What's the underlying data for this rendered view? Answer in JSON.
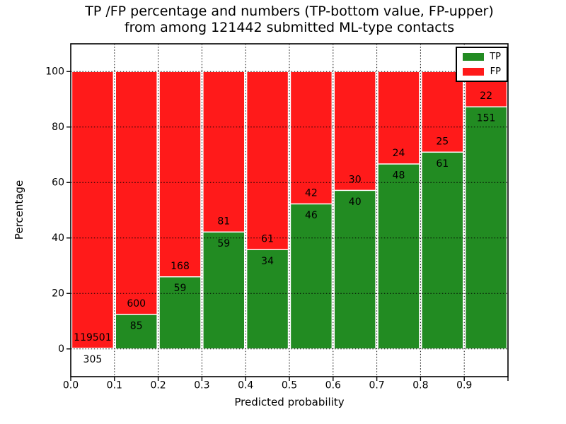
{
  "chart_data": {
    "type": "bar",
    "stacked": true,
    "orientation": "vertical",
    "title_line1": "TP /FP percentage and numbers (TP-bottom value, FP-upper)",
    "title_line2": "from among 121442 submitted ML-type contacts",
    "xlabel": "Predicted probability",
    "ylabel": "Percentage",
    "total_submitted": 121442,
    "bin_starts": [
      0.0,
      0.1,
      0.2,
      0.3,
      0.4,
      0.5,
      0.6,
      0.7,
      0.8,
      0.9
    ],
    "bin_width": 0.1,
    "series": [
      {
        "name": "TP",
        "color": "#228b22",
        "counts": [
          305,
          85,
          59,
          59,
          34,
          46,
          40,
          48,
          61,
          151
        ]
      },
      {
        "name": "FP",
        "color": "#ff1a1a",
        "counts": [
          119501,
          600,
          168,
          81,
          61,
          42,
          30,
          24,
          25,
          22
        ]
      }
    ],
    "tp_percent": [
      0.25,
      12.41,
      25.99,
      42.14,
      35.79,
      52.27,
      57.14,
      66.67,
      70.93,
      87.28
    ],
    "bar_labels_tp": [
      "305",
      "85",
      "59",
      "59",
      "34",
      "46",
      "40",
      "48",
      "61",
      "151"
    ],
    "bar_labels_fp": [
      "119501",
      "600",
      "168",
      "81",
      "61",
      "42",
      "30",
      "24",
      "25",
      "22"
    ],
    "xlim": [
      0,
      1
    ],
    "ylim": [
      -10,
      110
    ],
    "xtick_labels": [
      "0.0",
      "0.1",
      "0.2",
      "0.3",
      "0.4",
      "0.5",
      "0.6",
      "0.7",
      "0.8",
      "0.9"
    ],
    "ytick_values": [
      0,
      20,
      40,
      60,
      80,
      100
    ],
    "grid": true,
    "grid_style": "dotted",
    "axis_color": "#000000",
    "legend": {
      "position": "upper right",
      "entries": [
        "TP",
        "FP"
      ]
    }
  }
}
